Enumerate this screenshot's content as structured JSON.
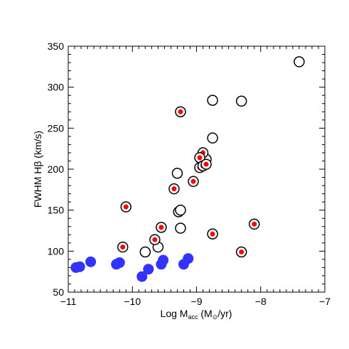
{
  "chart_data": {
    "type": "scatter",
    "xlabel": {
      "prefix": "Log M",
      "subscript": "acc",
      "suffix_open": " (M",
      "suffix_subscript": "⊙",
      "suffix_close": "/yr)"
    },
    "ylabel": "FWHM Hβ (km/s)",
    "xlim": [
      -11,
      -7
    ],
    "ylim": [
      50,
      350
    ],
    "xticks": [
      -11,
      -10,
      -9,
      -8,
      -7
    ],
    "yticks": [
      50,
      100,
      150,
      200,
      250,
      300,
      350
    ],
    "grid": false,
    "series": [
      {
        "marker": "open-circle",
        "color": "#000000",
        "points": [
          [
            -7.4,
            331
          ],
          [
            -8.3,
            283
          ],
          [
            -8.75,
            284
          ],
          [
            -8.75,
            238
          ],
          [
            -8.85,
            212
          ],
          [
            -9.3,
            195
          ],
          [
            -9.28,
            148
          ],
          [
            -9.25,
            150
          ],
          [
            -9.25,
            128
          ],
          [
            -9.8,
            99
          ],
          [
            -9.6,
            105
          ]
        ]
      },
      {
        "marker": "open-circle-red-dot",
        "color": "#000000",
        "inner_color": "#ff0000",
        "points": [
          [
            -9.25,
            270
          ],
          [
            -8.9,
            220
          ],
          [
            -8.95,
            214
          ],
          [
            -8.95,
            202
          ],
          [
            -8.9,
            204
          ],
          [
            -8.85,
            206
          ],
          [
            -9.05,
            185
          ],
          [
            -9.35,
            176
          ],
          [
            -10.1,
            154
          ],
          [
            -8.1,
            133
          ],
          [
            -9.55,
            129
          ],
          [
            -8.75,
            121
          ],
          [
            -9.65,
            114
          ],
          [
            -10.15,
            105
          ],
          [
            -8.3,
            99
          ]
        ]
      },
      {
        "marker": "filled-circle",
        "color": "#3333ff",
        "points": [
          [
            -10.88,
            80
          ],
          [
            -10.82,
            81
          ],
          [
            -10.65,
            87
          ],
          [
            -10.25,
            84
          ],
          [
            -10.2,
            86
          ],
          [
            -9.85,
            69
          ],
          [
            -9.75,
            78
          ],
          [
            -9.55,
            84
          ],
          [
            -9.52,
            89
          ],
          [
            -9.2,
            84
          ],
          [
            -9.13,
            91
          ]
        ]
      }
    ]
  }
}
